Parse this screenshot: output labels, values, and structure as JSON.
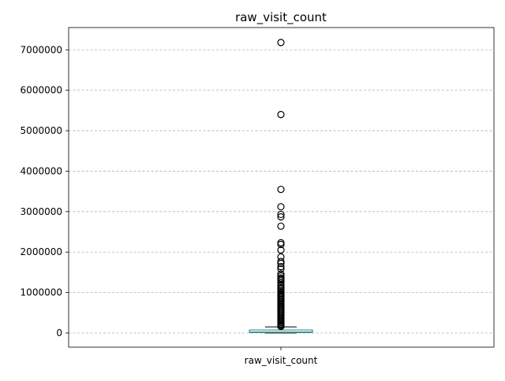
{
  "chart_data": {
    "type": "box",
    "title": "raw_visit_count",
    "categories": [
      "raw_visit_count"
    ],
    "xlabel": "",
    "ylabel": "",
    "ylim": [
      -350000,
      7550000
    ],
    "yticks": [
      0,
      1000000,
      2000000,
      3000000,
      4000000,
      5000000,
      6000000,
      7000000
    ],
    "ytick_labels": [
      "0",
      "1000000",
      "2000000",
      "3000000",
      "4000000",
      "5000000",
      "6000000",
      "7000000"
    ],
    "grid": true,
    "box": {
      "q1": 10000,
      "median": 25000,
      "q3": 75000,
      "whisker_low": 0,
      "whisker_high": 150000
    },
    "outliers": [
      7180000,
      5400000,
      3550000,
      3120000,
      2930000,
      2870000,
      2640000,
      2230000,
      2190000,
      2050000,
      1880000,
      1770000,
      1720000,
      1640000,
      1580000,
      1460000,
      1410000,
      1360000,
      1330000,
      1300000,
      1250000,
      1190000,
      1160000,
      1120000,
      1090000,
      1050000,
      1010000,
      980000,
      950000,
      920000,
      890000,
      860000,
      830000,
      800000,
      770000,
      740000,
      710000,
      680000,
      650000,
      620000,
      590000,
      560000,
      530000,
      500000,
      470000,
      440000,
      410000,
      380000,
      350000,
      320000,
      290000,
      260000,
      230000,
      200000,
      175000,
      160000
    ],
    "colors": {
      "box": "#1f77b4",
      "median": "#2ca02c",
      "whisker": "#000000",
      "outlier_edge": "#000000",
      "grid": "#b0b0b0"
    }
  }
}
